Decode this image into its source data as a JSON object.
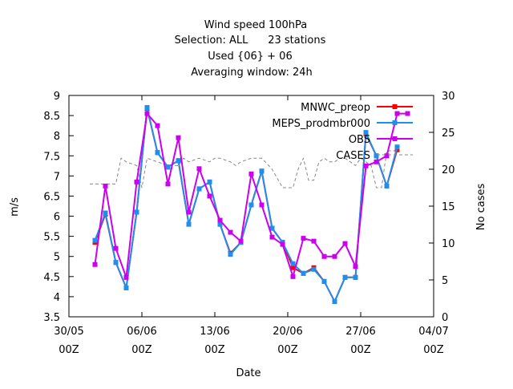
{
  "chart_data": {
    "type": "line",
    "title_lines": [
      "Wind speed 100hPa",
      "Selection: ALL      23 stations",
      "Used {06} + 06",
      "Averaging window: 24h"
    ],
    "xlabel": "Date",
    "ylabel": "m/s",
    "y2label": "No cases",
    "xlim": [
      0,
      35
    ],
    "ylim": [
      3.5,
      9
    ],
    "y2lim": [
      0,
      30
    ],
    "x_ticks": [
      {
        "x": 0,
        "line1": "30/05",
        "line2": "00Z"
      },
      {
        "x": 7,
        "line1": "06/06",
        "line2": "00Z"
      },
      {
        "x": 14,
        "line1": "13/06",
        "line2": "00Z"
      },
      {
        "x": 21,
        "line1": "20/06",
        "line2": "00Z"
      },
      {
        "x": 28,
        "line1": "27/06",
        "line2": "00Z"
      },
      {
        "x": 35,
        "line1": "04/07",
        "line2": "00Z"
      }
    ],
    "y_ticks": [
      "3.5",
      "4",
      "4.5",
      "5",
      "5.5",
      "6",
      "6.5",
      "7",
      "7.5",
      "8",
      "8.5",
      "9"
    ],
    "y2_ticks": [
      "0",
      "5",
      "10",
      "15",
      "20",
      "25",
      "30"
    ],
    "legend_position": "top-right",
    "x": [
      2.5,
      3.5,
      4.5,
      5.5,
      6.5,
      7.5,
      8.5,
      9.5,
      10.5,
      11.5,
      12.5,
      13.5,
      14.5,
      15.5,
      16.5,
      17.5,
      18.5,
      19.5,
      20.5,
      21.5,
      22.5,
      23.5,
      24.5,
      25.5,
      26.5,
      27.5,
      28.5,
      29.5,
      30.5,
      31.5,
      32.5,
      33.5
    ],
    "series": [
      {
        "name": "MNWC_preop",
        "color": "#ff0000",
        "marker": "square",
        "axis": "y",
        "values": [
          5.35,
          6.05,
          4.85,
          4.22,
          6.1,
          8.68,
          7.58,
          7.22,
          7.38,
          5.8,
          6.68,
          6.85,
          5.8,
          5.08,
          5.35,
          6.28,
          7.12,
          5.7,
          5.35,
          4.72,
          4.58,
          4.72,
          4.38,
          3.88,
          4.48,
          4.48,
          8.05,
          7.5,
          6.75,
          7.65,
          null,
          null
        ]
      },
      {
        "name": "MEPS_prodmbr000",
        "color": "#1f8fef",
        "marker": "square",
        "axis": "y",
        "values": [
          5.4,
          6.08,
          4.85,
          4.22,
          6.1,
          8.7,
          7.58,
          7.22,
          7.38,
          5.8,
          6.68,
          6.85,
          5.8,
          5.05,
          5.35,
          6.28,
          7.12,
          5.7,
          5.35,
          4.82,
          4.58,
          4.68,
          4.38,
          3.88,
          4.48,
          4.48,
          8.08,
          7.5,
          6.75,
          7.72,
          null,
          null
        ]
      },
      {
        "name": "OBS",
        "color": "#cc00ee",
        "marker": "square",
        "axis": "y",
        "values": [
          4.8,
          6.75,
          5.2,
          4.48,
          6.85,
          8.55,
          8.25,
          6.8,
          7.95,
          6.1,
          7.18,
          6.5,
          5.9,
          5.6,
          5.38,
          7.05,
          6.28,
          5.48,
          5.3,
          4.5,
          5.45,
          5.38,
          5.0,
          5.0,
          5.32,
          4.75,
          7.25,
          7.35,
          7.5,
          8.55,
          8.55,
          null
        ]
      },
      {
        "name": "CASES",
        "color": "#888888",
        "dash": true,
        "axis": "y2",
        "x": [
          2.0,
          2.5,
          3.5,
          4.5,
          5.0,
          5.5,
          6.5,
          7.0,
          7.5,
          8.5,
          9.5,
          10.5,
          11.0,
          11.5,
          12.5,
          13.5,
          14.0,
          14.5,
          15.5,
          16.0,
          16.5,
          17.5,
          18.5,
          19.5,
          20.5,
          21.0,
          21.5,
          22.0,
          22.5,
          23.0,
          23.5,
          24.0,
          24.5,
          25.0,
          25.5,
          26.0,
          26.5,
          27.0,
          27.5,
          28.0,
          28.5,
          29.0,
          29.5,
          30.0,
          30.5,
          31.0,
          31.5
        ],
        "values": [
          18.0,
          18.0,
          18.0,
          18.0,
          21.5,
          21.0,
          20.5,
          17.5,
          21.5,
          21.0,
          20.5,
          20.5,
          21.5,
          21.0,
          21.5,
          21.0,
          21.5,
          21.5,
          21.0,
          20.5,
          21.0,
          21.5,
          21.5,
          20.0,
          17.5,
          17.5,
          17.5,
          20.0,
          21.5,
          18.5,
          18.5,
          21.0,
          21.5,
          21.0,
          21.0,
          21.5,
          21.5,
          21.0,
          20.5,
          21.5,
          21.0,
          20.5,
          17.5,
          17.5,
          22.5,
          22.5,
          22.5
        ]
      }
    ]
  }
}
